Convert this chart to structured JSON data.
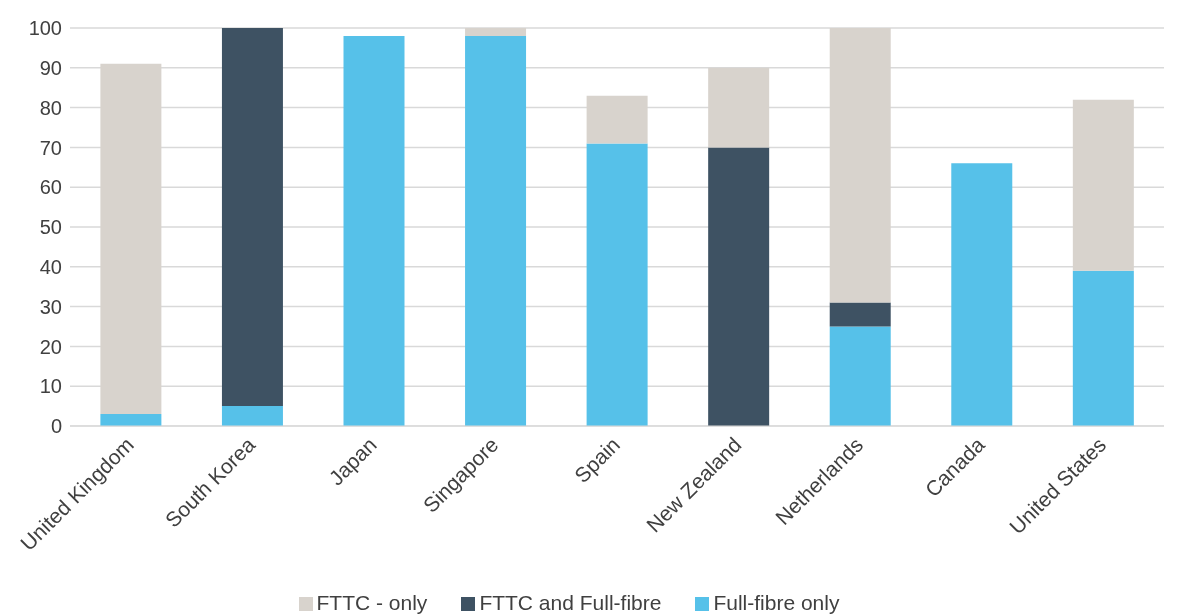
{
  "chart_data": {
    "type": "bar",
    "stacked": true,
    "categories": [
      "United Kingdom",
      "South Korea",
      "Japan",
      "Singapore",
      "Spain",
      "New Zealand",
      "Netherlands",
      "Canada",
      "United States"
    ],
    "series": [
      {
        "name": "Full-fibre only",
        "color": "#56c1e9",
        "values": [
          3,
          5,
          98,
          98,
          71,
          0,
          25,
          66,
          39
        ]
      },
      {
        "name": "FTTC and Full-fibre",
        "color": "#3e5263",
        "values": [
          0,
          95,
          0,
          0,
          0,
          70,
          6,
          0,
          0
        ]
      },
      {
        "name": "FTTC - only",
        "color": "#d8d3cd",
        "values": [
          88,
          0,
          0,
          2,
          12,
          20,
          69,
          0,
          43
        ]
      }
    ],
    "ylim": [
      0,
      100
    ],
    "yticks": [
      0,
      10,
      20,
      30,
      40,
      50,
      60,
      70,
      80,
      90,
      100
    ],
    "grid": "y",
    "legend": "bottom"
  }
}
